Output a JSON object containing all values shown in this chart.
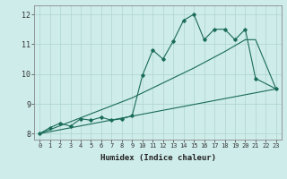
{
  "bg_color": "#ceecea",
  "grid_color": "#aed4d0",
  "line_color": "#1a6b5a",
  "xlabel": "Humidex (Indice chaleur)",
  "xlim": [
    -0.5,
    23.5
  ],
  "ylim": [
    7.8,
    12.3
  ],
  "yticks": [
    8,
    9,
    10,
    11,
    12
  ],
  "xticks": [
    0,
    1,
    2,
    3,
    4,
    5,
    6,
    7,
    8,
    9,
    10,
    11,
    12,
    13,
    14,
    15,
    16,
    17,
    18,
    19,
    20,
    21,
    22,
    23
  ],
  "line1_x": [
    0,
    23
  ],
  "line1_y": [
    8.0,
    9.5
  ],
  "line2_x": [
    0,
    3,
    6,
    9,
    12,
    15,
    18,
    20,
    21,
    23
  ],
  "line2_y": [
    8.0,
    8.4,
    8.8,
    9.2,
    9.7,
    10.2,
    10.75,
    11.15,
    11.15,
    9.5
  ],
  "line3_x": [
    0,
    1,
    2,
    3,
    4,
    5,
    6,
    7,
    8,
    9,
    10,
    11,
    12,
    13,
    14,
    15,
    16,
    17,
    18,
    19,
    20,
    21,
    23
  ],
  "line3_y": [
    8.0,
    8.2,
    8.35,
    8.25,
    8.5,
    8.45,
    8.55,
    8.45,
    8.5,
    8.6,
    9.95,
    10.8,
    10.5,
    11.1,
    11.8,
    12.0,
    11.15,
    11.5,
    11.5,
    11.15,
    11.5,
    9.85,
    9.5
  ]
}
